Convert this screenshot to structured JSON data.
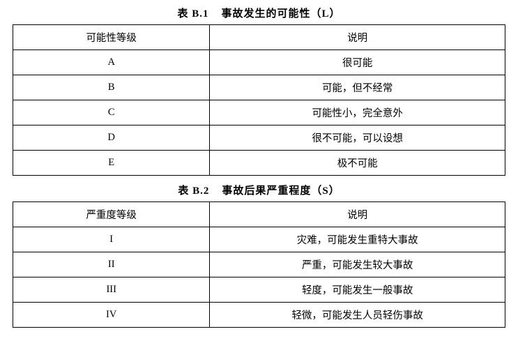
{
  "table1": {
    "title_prefix": "表 B.1",
    "title_text": "事故发生的可能性（L）",
    "columns": [
      "可能性等级",
      "说明"
    ],
    "rows": [
      [
        "A",
        "很可能"
      ],
      [
        "B",
        "可能，但不经常"
      ],
      [
        "C",
        "可能性小，完全意外"
      ],
      [
        "D",
        "很不可能，可以设想"
      ],
      [
        "E",
        "极不可能"
      ]
    ],
    "border_color": "#000000",
    "text_color": "#000000",
    "font_size": 14.5,
    "title_font_size": 15,
    "col_widths": [
      "40%",
      "60%"
    ]
  },
  "table2": {
    "title_prefix": "表 B.2",
    "title_text": "事故后果严重程度（S）",
    "columns": [
      "严重度等级",
      "说明"
    ],
    "rows": [
      [
        "I",
        "灾难，可能发生重特大事故"
      ],
      [
        "II",
        "严重，可能发生较大事故"
      ],
      [
        "III",
        "轻度，可能发生一般事故"
      ],
      [
        "IV",
        "轻微，可能发生人员轻伤事故"
      ]
    ],
    "border_color": "#000000",
    "text_color": "#000000",
    "font_size": 14.5,
    "title_font_size": 15,
    "col_widths": [
      "40%",
      "60%"
    ]
  },
  "background_color": "#ffffff"
}
